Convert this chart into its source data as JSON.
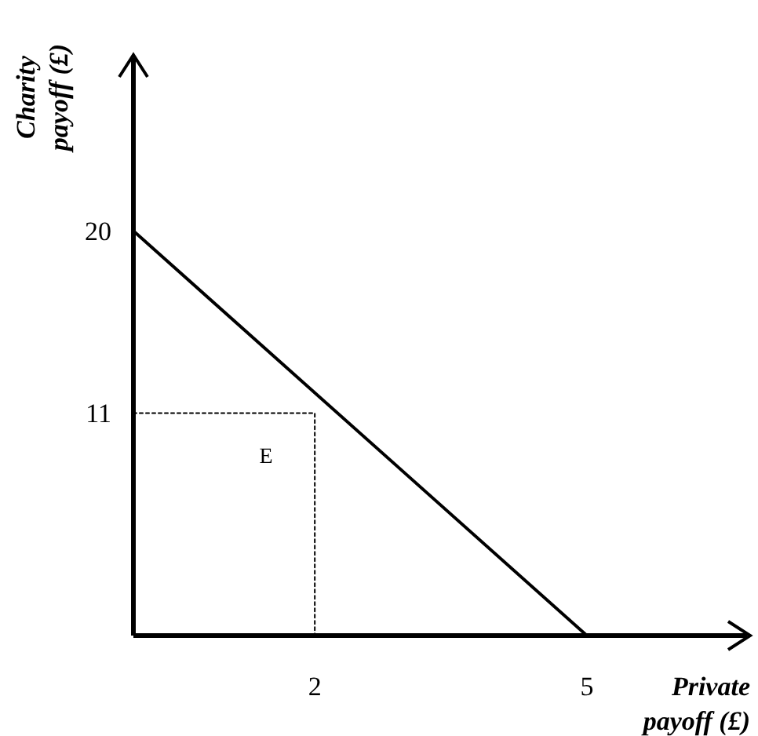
{
  "chart_data": {
    "type": "line",
    "xlabel": "Private payoff (£)",
    "ylabel": "Charity payoff (£)",
    "xlim": [
      0,
      6.8
    ],
    "ylim": [
      0,
      28.7
    ],
    "xticks": [
      2,
      5
    ],
    "yticks": [
      11,
      20
    ],
    "grid": false,
    "marker": "none",
    "series": [
      {
        "color": "#000000",
        "x": [
          0,
          5
        ],
        "values": [
          20,
          0
        ],
        "line_style": "solid"
      },
      {
        "color": "#000000",
        "x": [
          0,
          2,
          2
        ],
        "values": [
          11,
          11,
          0
        ],
        "line_style": "dotted"
      }
    ],
    "annotations": [
      {
        "text": "E",
        "x": 2,
        "y": 11
      }
    ]
  }
}
